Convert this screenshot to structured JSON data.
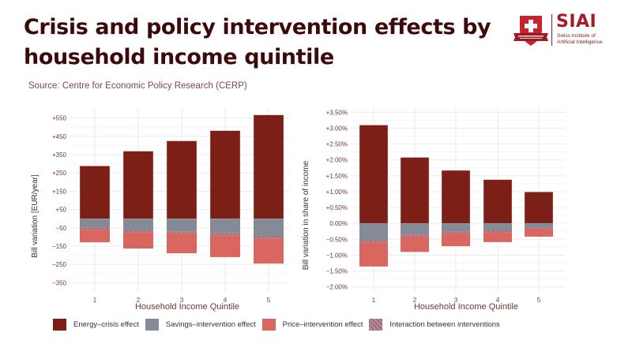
{
  "header": {
    "title": "Crisis and policy intervention effects by household income quintile",
    "title_line1": "Crisis and policy intervention effects by",
    "title_line2": "household income quintile",
    "source": "Source: Centre for Economic Policy Research (CERP)"
  },
  "logo": {
    "name": "SIAI",
    "subtitle_line1": "Swiss Institute of",
    "subtitle_line2": "Artificial Intelligence",
    "icon": "swiss-cross-shield-icon"
  },
  "colors": {
    "energy": "#7b1f17",
    "savings": "#858a97",
    "price": "#d9665f",
    "interaction": "#a87a8a",
    "grid": "#ececec",
    "axis_text": "#6b3a35"
  },
  "legend": [
    {
      "key": "energy",
      "label": "Energy–crisis effect"
    },
    {
      "key": "savings",
      "label": "Savings–intervention effect"
    },
    {
      "key": "price",
      "label": "Price–intervention effect"
    },
    {
      "key": "interaction",
      "label": "Interaction between interventions"
    }
  ],
  "chart_data": [
    {
      "type": "bar",
      "stacked": true,
      "title": "",
      "xlabel": "Household Income Quintile",
      "ylabel": "Bill variation [EUR/year]",
      "categories": [
        "1",
        "2",
        "3",
        "4",
        "5"
      ],
      "ylim": [
        -400,
        600
      ],
      "yticks": [
        550,
        450,
        350,
        250,
        150,
        50,
        -50,
        -150,
        -250,
        -350
      ],
      "ytick_labels": [
        "+550",
        "+450",
        "+350",
        "+250",
        "+150",
        "+50",
        "−50",
        "−150",
        "−250",
        "−350"
      ],
      "grid": true,
      "series": [
        {
          "name": "Energy–crisis effect",
          "key": "energy",
          "values": [
            288,
            369,
            425,
            481,
            567
          ]
        },
        {
          "name": "Savings–intervention effect",
          "key": "savings",
          "values": [
            -47,
            -64,
            -69,
            -78,
            -94
          ]
        },
        {
          "name": "Interaction between interventions",
          "key": "interaction",
          "values": [
            -13,
            -9,
            -11,
            -15,
            -16
          ]
        },
        {
          "name": "Price–intervention effect",
          "key": "price",
          "values": [
            -69,
            -90,
            -109,
            -117,
            -135
          ]
        }
      ]
    },
    {
      "type": "bar",
      "stacked": true,
      "title": "",
      "xlabel": "Household Income Quintile",
      "ylabel": "Bill variation in share of income",
      "categories": [
        "1",
        "2",
        "3",
        "4",
        "5"
      ],
      "ylim": [
        -2.1,
        3.6
      ],
      "yticks": [
        3.5,
        3.0,
        2.5,
        2.0,
        1.5,
        1.0,
        0.5,
        0.0,
        -0.5,
        -1.0,
        -1.5,
        -2.0
      ],
      "ytick_labels": [
        "+3.50%",
        "+3.00%",
        "+2.50%",
        "+2.00%",
        "+1.50%",
        "+1.00%",
        "+0.50%",
        "0.00%",
        "−0.50%",
        "−1.00%",
        "−1.50%",
        "−2.00%"
      ],
      "grid": true,
      "series": [
        {
          "name": "Energy–crisis effect",
          "key": "energy",
          "values": [
            3.1,
            2.08,
            1.67,
            1.38,
            0.99
          ]
        },
        {
          "name": "Savings–intervention effect",
          "key": "savings",
          "values": [
            -0.53,
            -0.35,
            -0.25,
            -0.22,
            -0.13
          ]
        },
        {
          "name": "Interaction between interventions",
          "key": "interaction",
          "values": [
            -0.07,
            -0.06,
            -0.06,
            -0.06,
            -0.05
          ]
        },
        {
          "name": "Price–intervention effect",
          "key": "price",
          "values": [
            -0.76,
            -0.49,
            -0.41,
            -0.31,
            -0.24
          ]
        }
      ]
    }
  ]
}
